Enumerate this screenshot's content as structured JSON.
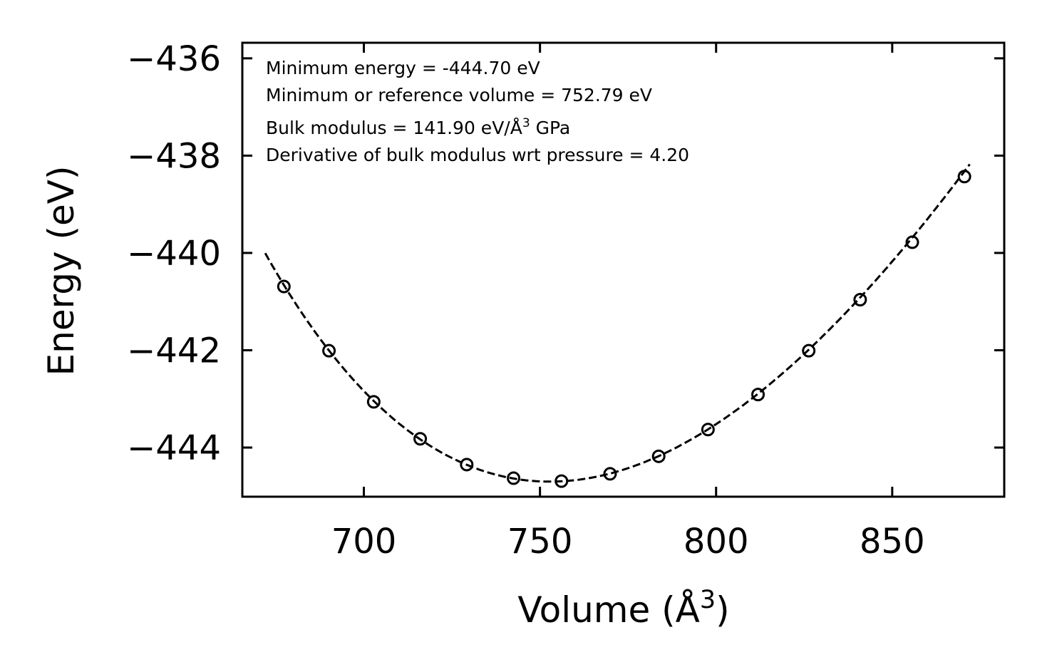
{
  "chart_data": {
    "type": "scatter",
    "xlabel": "Volume (Å",
    "xlabel_sup": "3",
    "xlabel_end": ")",
    "ylabel": "Energy (eV)",
    "xlim": [
      665.5,
      881.8
    ],
    "ylim": [
      -445.01,
      -435.68
    ],
    "xticks": [
      700,
      750,
      800,
      850
    ],
    "yticks": [
      -436,
      -438,
      -440,
      -442,
      -444
    ],
    "xtick_labels": [
      "700",
      "750",
      "800",
      "850"
    ],
    "ytick_labels": [
      "−436",
      "−438",
      "−440",
      "−442",
      "−444"
    ],
    "grid": false,
    "annotations": [
      "Minimum energy = -444.70 eV",
      "Minimum or reference volume = 752.79 eV",
      "Bulk modulus = 141.90 eV/Å",
      "Derivative of bulk modulus wrt pressure = 4.20"
    ],
    "annotation_bulk_sup": "3",
    "annotation_bulk_end": " GPa",
    "series": [
      {
        "name": "data",
        "style": "open-circle",
        "x": [
          677.3,
          690.1,
          702.8,
          716.0,
          729.2,
          742.5,
          756.1,
          769.9,
          783.7,
          797.7,
          811.9,
          826.3,
          840.9,
          855.7,
          870.5
        ],
        "y": [
          -440.69,
          -442.01,
          -443.06,
          -443.82,
          -444.35,
          -444.63,
          -444.69,
          -444.54,
          -444.18,
          -443.63,
          -442.91,
          -442.01,
          -440.96,
          -439.78,
          -438.43
        ]
      },
      {
        "name": "fit",
        "style": "dashed-line",
        "fit": {
          "E0": -444.7,
          "V0": 752.79,
          "B_GPa": 141.9,
          "Bp": 4.2
        },
        "x_range": [
          672,
          872
        ]
      }
    ]
  }
}
